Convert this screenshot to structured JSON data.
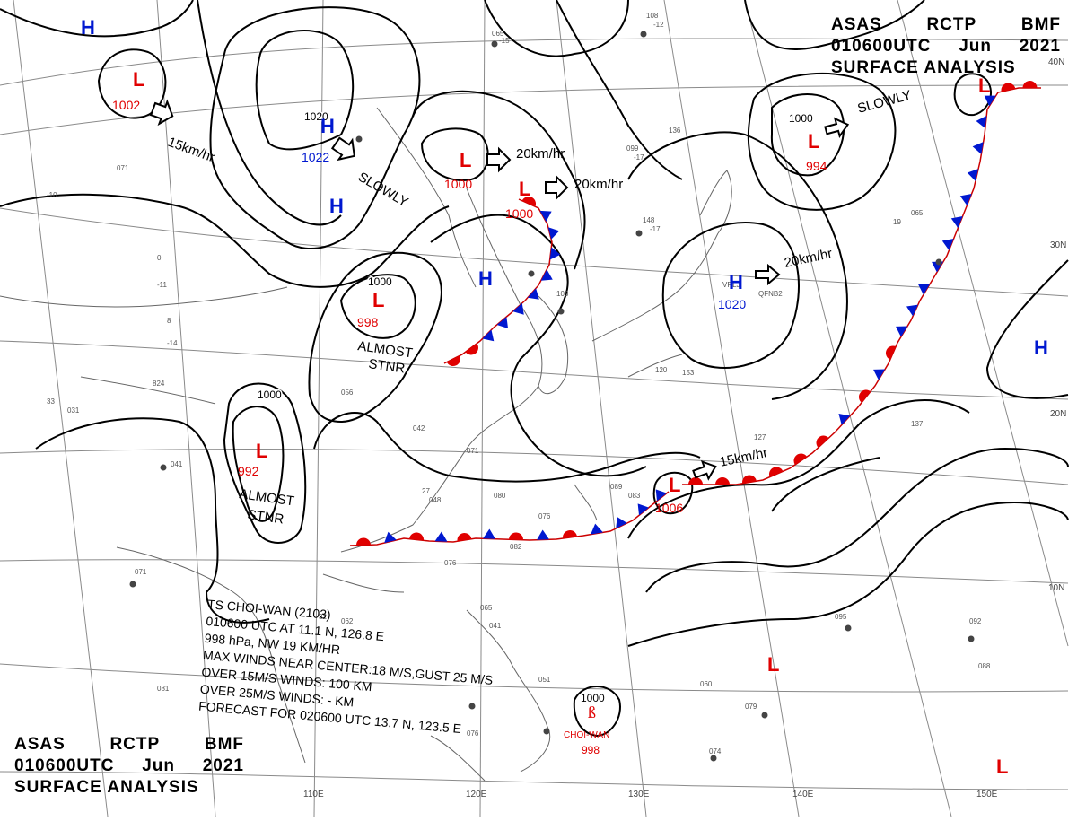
{
  "header_top": {
    "line1": [
      "ASAS",
      "RCTP",
      "BMF"
    ],
    "line2": [
      "010600UTC",
      "Jun",
      "2021"
    ],
    "line3": "SURFACE ANALYSIS"
  },
  "header_bottom": {
    "line1": [
      "ASAS",
      "RCTP",
      "BMF"
    ],
    "line2": [
      "010600UTC",
      "Jun",
      "2021"
    ],
    "line3": "SURFACE ANALYSIS"
  },
  "typhoon_note": [
    "TS CHOI-WAN (2103)",
    "010600 UTC AT 11.1 N, 126.8 E",
    "998 hPa, NW 19 KM/HR",
    "MAX WINDS NEAR CENTER:18 M/S,GUST 25 M/S",
    "OVER 15M/S WINDS: 100 KM",
    "OVER 25M/S WINDS: - KM",
    "FORECAST FOR 020600 UTC 13.7 N, 123.5 E"
  ],
  "lows": [
    {
      "sym": "L",
      "pressure": "1002"
    },
    {
      "sym": "L",
      "pressure": "1000"
    },
    {
      "sym": "L",
      "pressure": "1000"
    },
    {
      "sym": "L",
      "pressure": "998"
    },
    {
      "sym": "L",
      "pressure": "992"
    },
    {
      "sym": "L",
      "pressure": "994"
    },
    {
      "sym": "L",
      "pressure": "1006"
    },
    {
      "sym": "L",
      "pressure": "998"
    },
    {
      "sym": "L",
      "pressure": ""
    },
    {
      "sym": "L",
      "pressure": ""
    },
    {
      "sym": "L",
      "pressure": ""
    }
  ],
  "highs": [
    {
      "sym": "H",
      "pressure": ""
    },
    {
      "sym": "H",
      "pressure": "1022"
    },
    {
      "sym": "H",
      "pressure": ""
    },
    {
      "sym": "H",
      "pressure": ""
    },
    {
      "sym": "H",
      "pressure": "1020"
    },
    {
      "sym": "H",
      "pressure": ""
    }
  ],
  "movement_labels": [
    "15km/hr",
    "SLOWLY",
    "20km/hr",
    "20km/hr",
    "SLOWLY",
    "20km/hr",
    "15km/hr"
  ],
  "status_labels": [
    {
      "l1": "ALMOST",
      "l2": "STNR"
    },
    {
      "l1": "ALMOST",
      "l2": "STNR"
    }
  ],
  "storm_name": "CHOI-WAN",
  "isobar_labels": [
    "1020",
    "1000",
    "1000",
    "1000",
    "1000"
  ],
  "lon_labels": [
    "110E",
    "120E",
    "130E",
    "140E",
    "150E"
  ],
  "lat_labels": [
    "40N",
    "30N",
    "20N",
    "10N"
  ],
  "colors": {
    "low": "#e00000",
    "high": "#0018d0",
    "warm_front": "#e00000",
    "cold_front": "#0018d0",
    "isobar": "#000000",
    "grid": "#8a8a8a",
    "coast": "#666666"
  }
}
